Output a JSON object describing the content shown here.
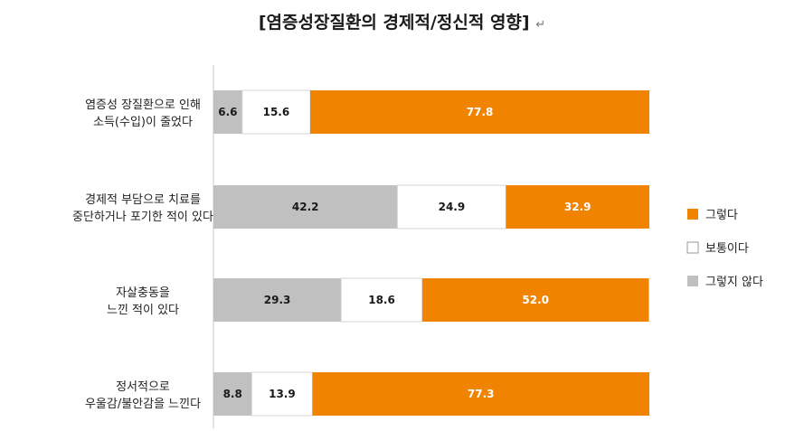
{
  "chart_data": {
    "type": "bar",
    "orientation": "horizontal",
    "stacked": true,
    "percent_stacked": true,
    "title": "[염증성장질환의 경제적/정신적 영향]",
    "title_suffix": "↵",
    "xlabel": "",
    "ylabel": "",
    "xlim": [
      0,
      100
    ],
    "grid": false,
    "legend_position": "right",
    "categories": [
      [
        "염증성 장질환으로 인해",
        "소득(수입)이 줄었다"
      ],
      [
        "경제적 부담으로 치료를",
        "중단하거나 포기한 적이 있다"
      ],
      [
        "자살충동을",
        "느낀 적이 있다"
      ],
      [
        "정서적으로",
        "우울감/불안감을 느낀다"
      ]
    ],
    "series": [
      {
        "name": "그렇지 않다",
        "color": "#c0c0c0",
        "label_color": "#1a1a1a",
        "values": [
          6.6,
          42.2,
          29.3,
          8.8
        ]
      },
      {
        "name": "보통이다",
        "color": "#ffffff",
        "label_color": "#1a1a1a",
        "values": [
          15.6,
          24.9,
          18.6,
          13.9
        ]
      },
      {
        "name": "그렇다",
        "color": "#f08300",
        "label_color": "#ffffff",
        "values": [
          77.8,
          32.9,
          52.0,
          77.3
        ]
      }
    ],
    "legend_order": [
      "그렇다",
      "보통이다",
      "그렇지 않다"
    ]
  }
}
